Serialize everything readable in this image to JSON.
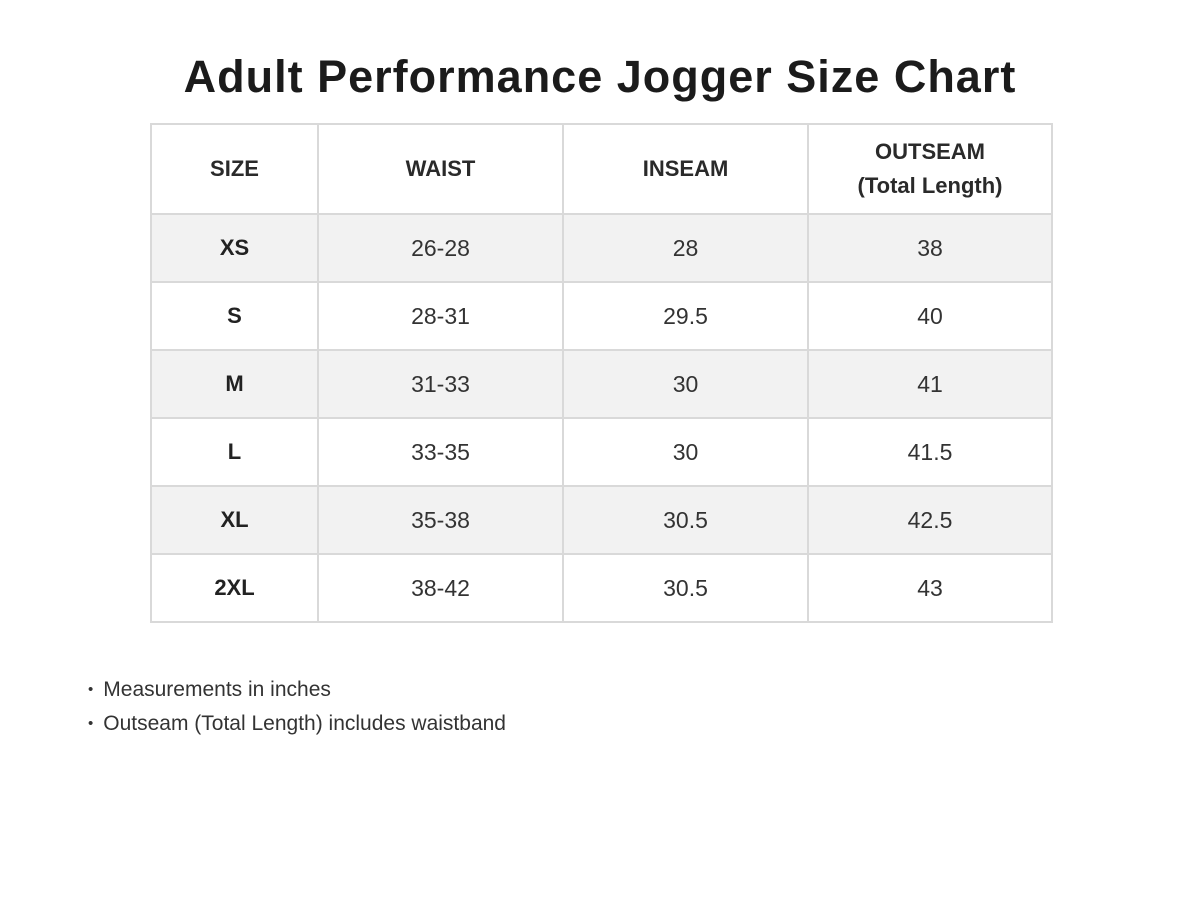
{
  "chart_data": {
    "type": "table",
    "title": "Adult Performance Jogger Size Chart",
    "headers": [
      {
        "label": "SIZE"
      },
      {
        "label": "WAIST"
      },
      {
        "label": "INSEAM"
      },
      {
        "label": "OUTSEAM",
        "sublabel": "(Total Length)"
      }
    ],
    "rows": [
      [
        "XS",
        "26-28",
        "28",
        "38"
      ],
      [
        "S",
        "28-31",
        "29.5",
        "40"
      ],
      [
        "M",
        "31-33",
        "30",
        "41"
      ],
      [
        "L",
        "33-35",
        "30",
        "41.5"
      ],
      [
        "XL",
        "35-38",
        "30.5",
        "42.5"
      ],
      [
        "2XL",
        "38-42",
        "30.5",
        "43"
      ]
    ],
    "notes": {
      "bullet": "•",
      "items": [
        "Measurements in inches",
        "Outseam (Total Length) includes waistband"
      ]
    }
  },
  "colors": {
    "row_stripe": "#f2f2f2",
    "row_plain": "#ffffff",
    "border_outer": "#b9b9b9",
    "border_inner": "#d9d9d9",
    "title_text": "#1b1b1b",
    "header_text": "#2a2a2a",
    "body_text": "#333333"
  }
}
